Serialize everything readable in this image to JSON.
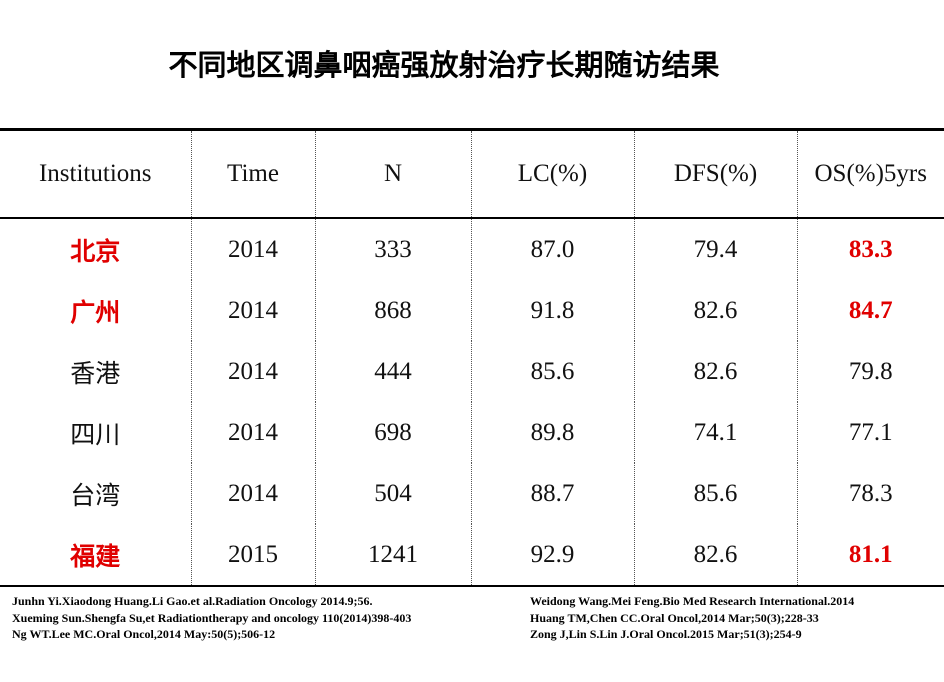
{
  "header": {
    "title": "不同地区调鼻咽癌强放射治疗长期随访结果"
  },
  "table": {
    "columns": [
      "Institutions",
      "Time",
      "N",
      "LC(%)",
      "DFS(%)",
      "OS(%)5yrs"
    ],
    "rows": [
      [
        "北京",
        "2014",
        "333",
        "87.0",
        "79.4",
        "83.3"
      ],
      [
        "广州",
        "2014",
        "868",
        "91.8",
        "82.6",
        "84.7"
      ],
      [
        "香港",
        "2014",
        "444",
        "85.6",
        "82.6",
        "79.8"
      ],
      [
        "四川",
        "2014",
        "698",
        "89.8",
        "74.1",
        "77.1"
      ],
      [
        "台湾",
        "2014",
        "504",
        "88.7",
        "85.6",
        "78.3"
      ],
      [
        "福建",
        "2015",
        "1241",
        "92.9",
        "82.6",
        "81.1"
      ]
    ]
  },
  "references": {
    "left": [
      "Junhn Yi.Xiaodong Huang.Li Gao.et al.Radiation Oncology 2014.9;56.",
      "Xueming Sun.Shengfa Su,et Radiationtherapy and oncology 110(2014)398-403",
      "Ng WT.Lee MC.Oral Oncol,2014 May:50(5);506-12"
    ],
    "right": [
      "Weidong Wang.Mei Feng.Bio Med Research International.2014",
      "Huang TM,Chen CC.Oral Oncol,2014 Mar;50(3);228-33",
      "Zong J,Lin S.Lin J.Oral Oncol.2015 Mar;51(3);254-9"
    ]
  }
}
